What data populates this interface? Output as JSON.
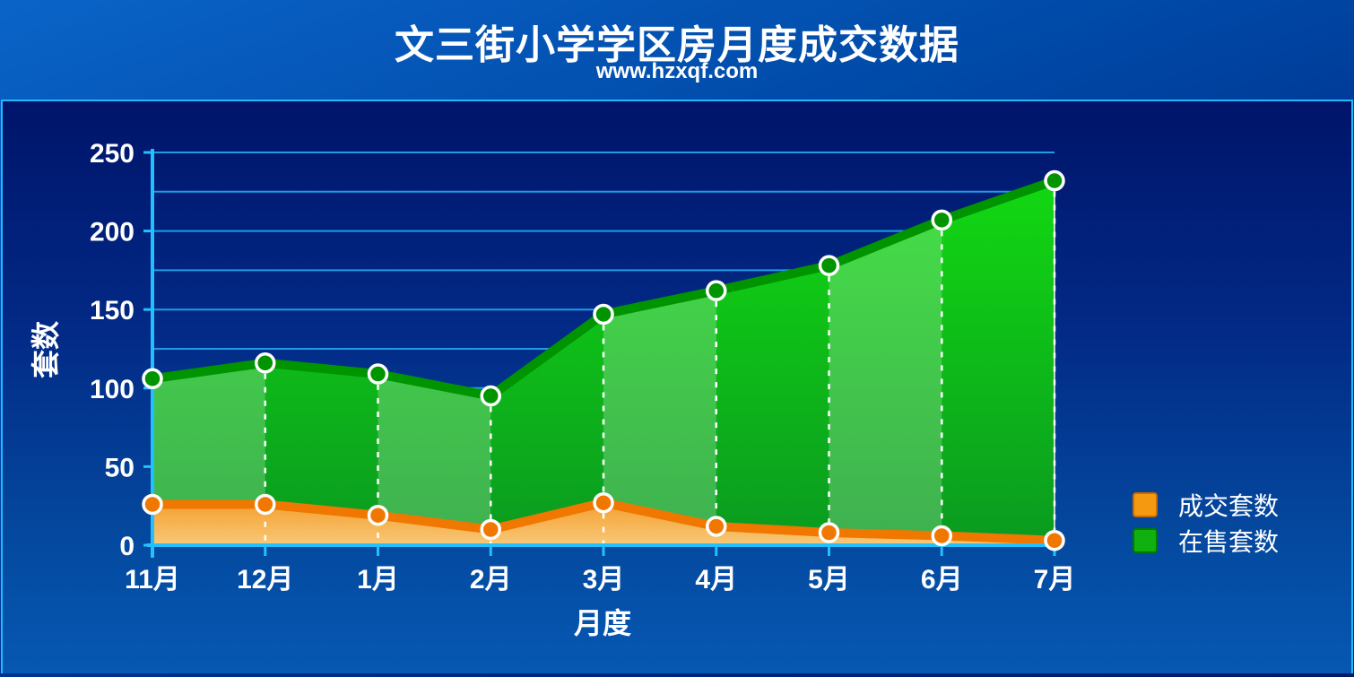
{
  "header": {
    "title": "文三街小学学区房月度成交数据",
    "subtitle": "www.hzxqf.com"
  },
  "colors": {
    "sold_line": "#f07800",
    "sold_fill": "#f6b040",
    "listed_line": "#009400",
    "listed_fill": "#10d010",
    "grid": "#1e9ce8",
    "axis": "#22c0ff",
    "marker_border": "#ffffff"
  },
  "chart_data": {
    "type": "area",
    "title": "文三街小学学区房月度成交数据",
    "subtitle": "www.hzxqf.com",
    "xlabel": "月度",
    "ylabel": "套数",
    "categories": [
      "11月",
      "12月",
      "1月",
      "2月",
      "3月",
      "4月",
      "5月",
      "6月",
      "7月"
    ],
    "ylim": [
      0,
      250
    ],
    "yticks": [
      "0",
      "50",
      "100",
      "150",
      "200",
      "250"
    ],
    "grid": true,
    "legend_position": "right",
    "series": [
      {
        "name": "成交套数",
        "values": [
          26,
          26,
          19,
          10,
          27,
          12,
          8,
          6,
          3
        ]
      },
      {
        "name": "在售套数",
        "values": [
          106,
          116,
          109,
          95,
          147,
          162,
          178,
          207,
          232
        ]
      }
    ]
  }
}
